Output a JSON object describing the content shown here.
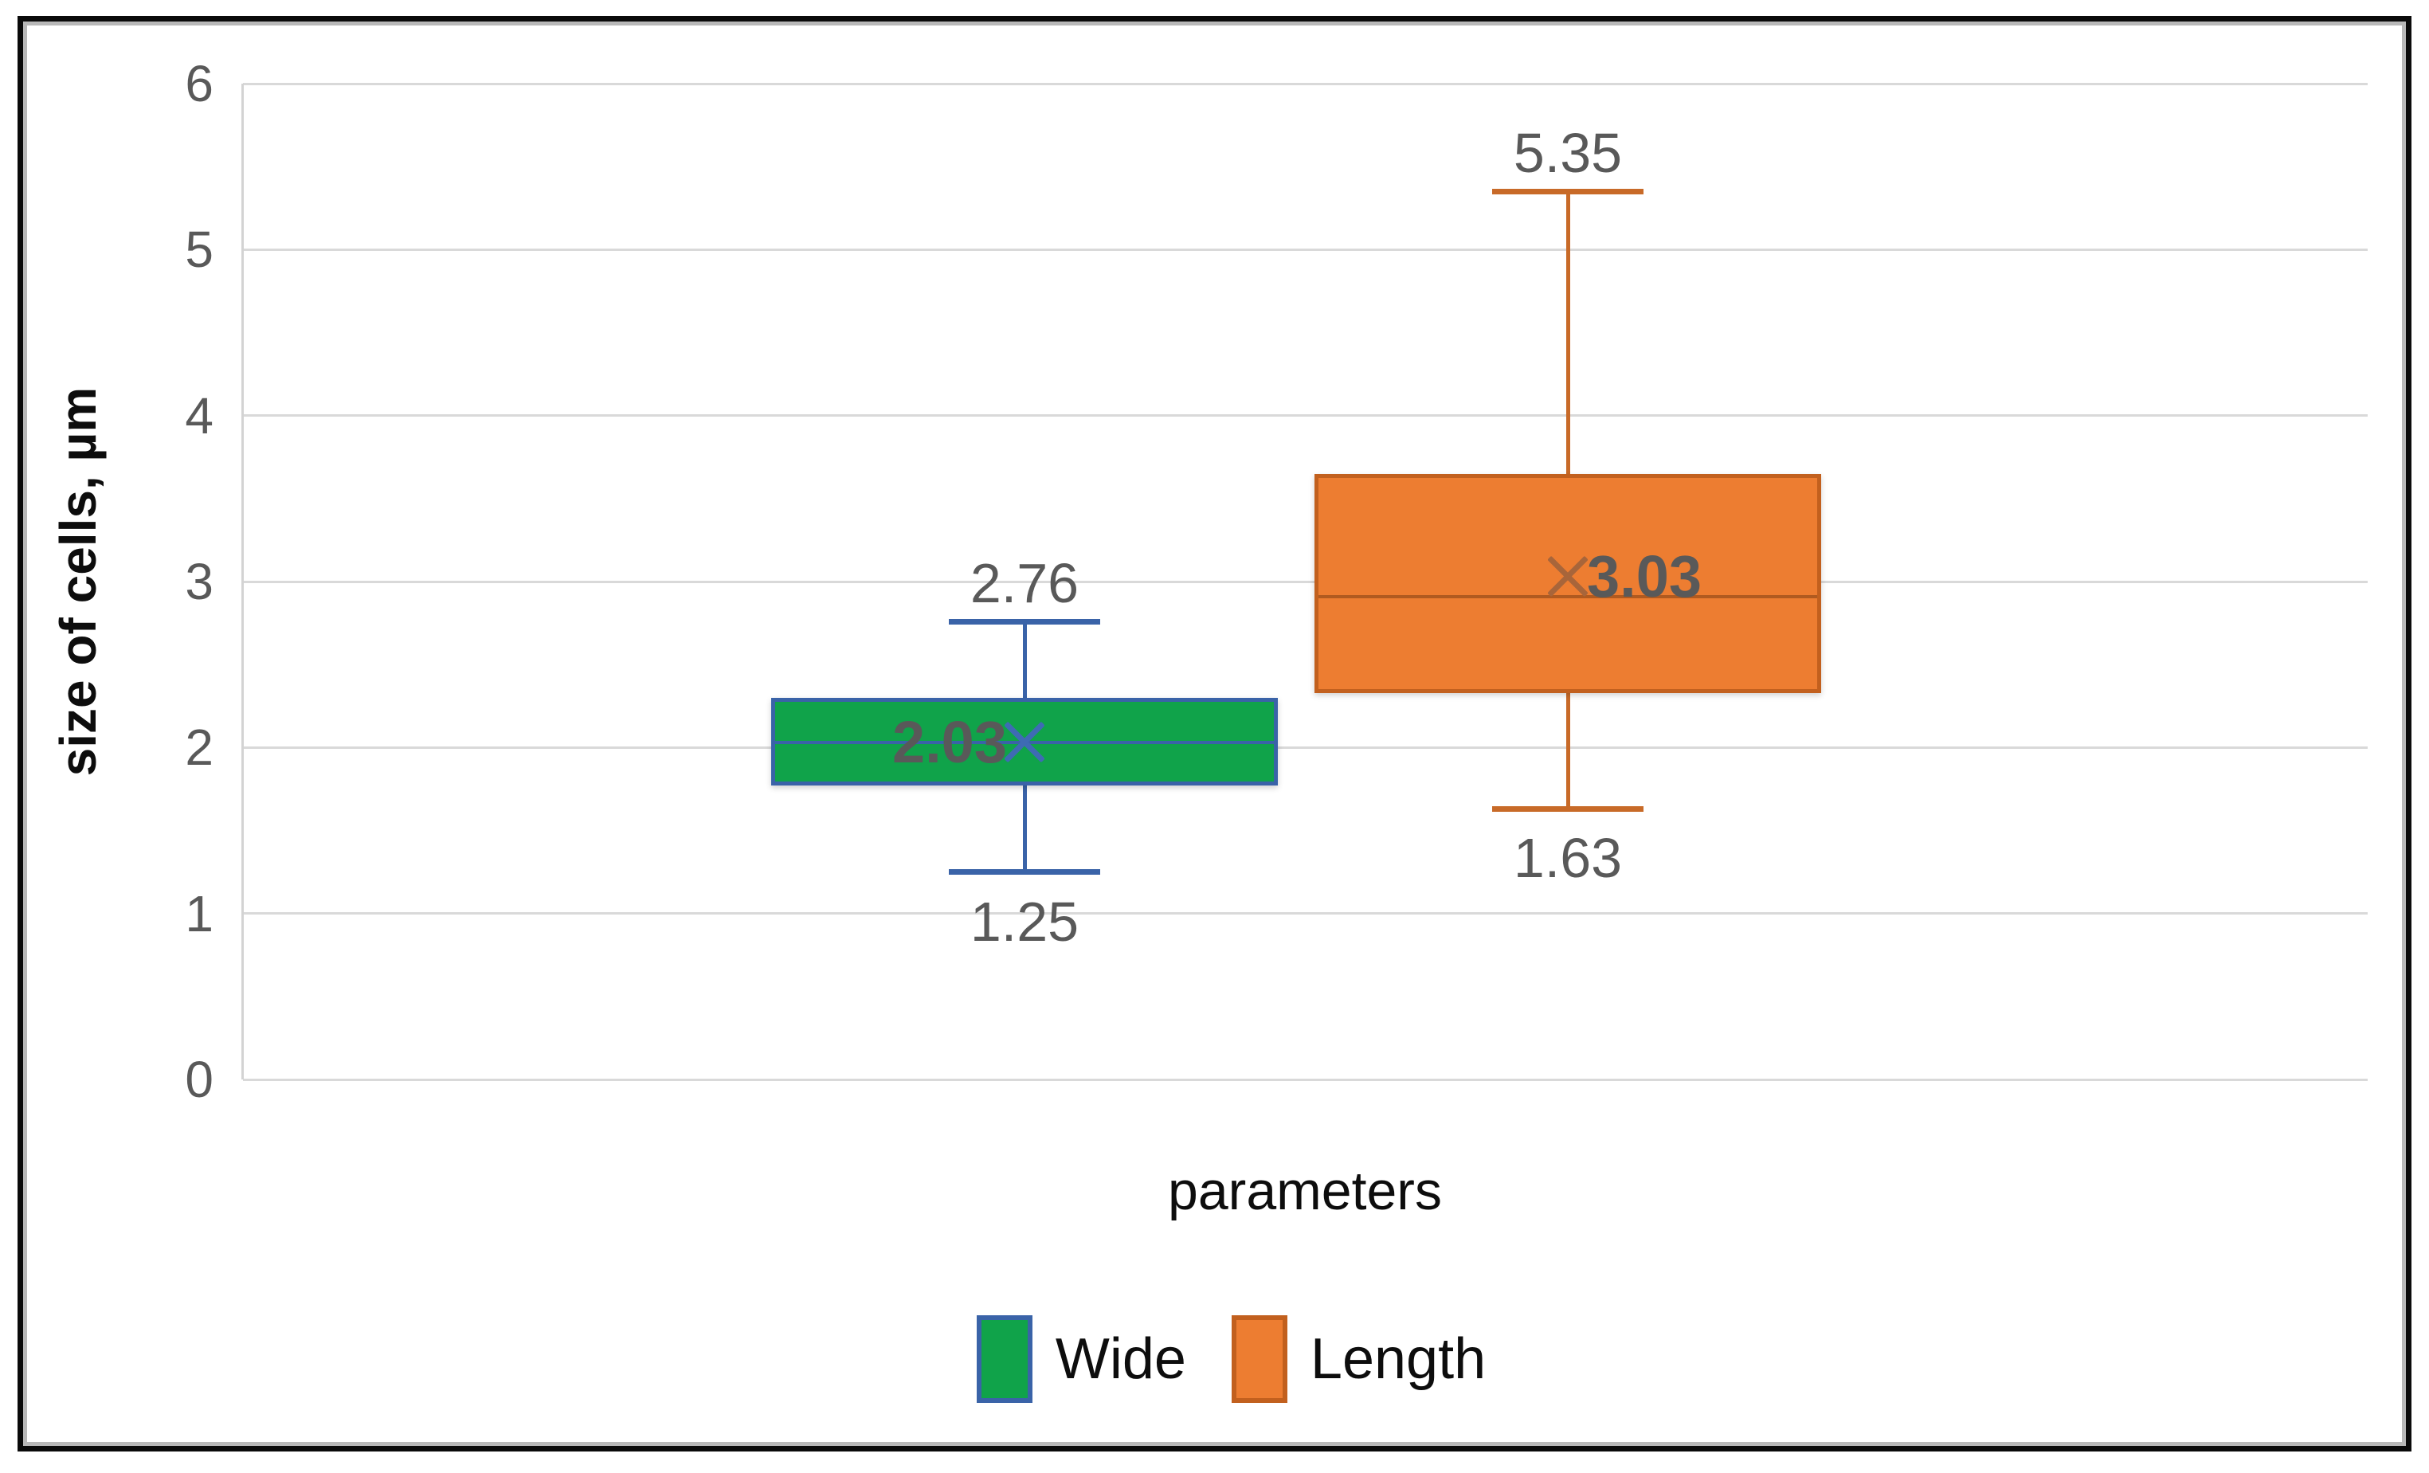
{
  "figure": {
    "y_axis_title": "size of cells, µm",
    "x_axis_title": "parameters"
  },
  "legend": {
    "items": [
      {
        "label": "Wide",
        "fill": "#10A34A",
        "border": "#3A63A8"
      },
      {
        "label": "Length",
        "fill": "#ED7D31",
        "border": "#C2601E"
      }
    ]
  },
  "chart_data": {
    "type": "box",
    "title": "",
    "xlabel": "parameters",
    "ylabel": "size of cells, µm",
    "ylim": [
      0,
      6
    ],
    "y_ticks": [
      0,
      1,
      2,
      3,
      4,
      5,
      6
    ],
    "grid": true,
    "legend_position": "bottom",
    "categories": [
      "parameters"
    ],
    "series": [
      {
        "name": "Wide",
        "min": 1.25,
        "q1": 1.77,
        "median": 2.03,
        "q3": 2.3,
        "max": 2.76,
        "mean": 2.03,
        "labels": {
          "max": "2.76",
          "min": "1.25",
          "mean": "2.03"
        },
        "mean_label_side": "left",
        "fill": "#10A34A",
        "border": "#3A63A8",
        "median_color": "#3A63A8",
        "whisker_color": "#3A63A8",
        "marker_color": "#3E6BB4"
      },
      {
        "name": "Length",
        "min": 1.63,
        "q1": 2.33,
        "median": 2.91,
        "q3": 3.65,
        "max": 5.35,
        "mean": 3.03,
        "labels": {
          "max": "5.35",
          "min": "1.63",
          "mean": "3.03"
        },
        "mean_label_side": "right",
        "fill": "#ED7D31",
        "border": "#C2601E",
        "median_color": "#B05A20",
        "whisker_color": "#C86A28",
        "marker_color": "#A8653A"
      }
    ]
  }
}
